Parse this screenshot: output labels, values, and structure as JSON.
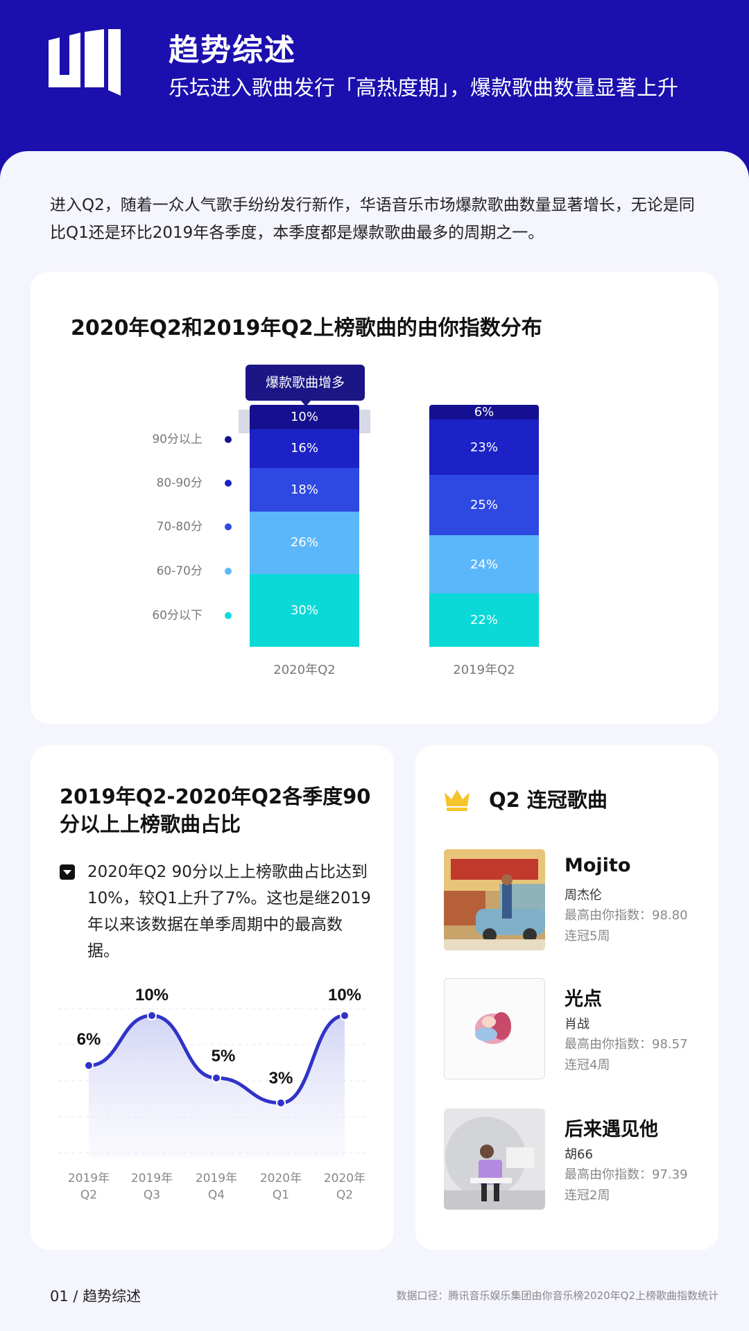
{
  "header": {
    "title": "趋势综述",
    "subtitle": "乐坛进入歌曲发行「高热度期」，爆款歌曲数量显著上升"
  },
  "intro": "进入Q2，随着一众人气歌手纷纷发行新作，华语音乐市场爆款歌曲数量显著增长，无论是同比Q1还是环比2019年各季度，本季度都是爆款歌曲最多的周期之一。",
  "colors": {
    "brand": "#1b0fae",
    "seg_90_up": "#15108f",
    "seg_80_90": "#1c22c6",
    "seg_70_80": "#2e48e2",
    "seg_60_70": "#5cb7fa",
    "seg_60_down": "#0ad9d8",
    "line": "#2f33c8",
    "gold": "#f5c42a"
  },
  "stacked_chart": {
    "callout": "爆款歌曲增多"
  },
  "line_chart": {
    "title": "2019年Q2-2020年Q2各季度90分以上上榜歌曲占比",
    "note": "2020年Q2 90分以上上榜歌曲占比达到10%，较Q1上升了7%。这也是继2019年以来该数据在单季周期中的最高数据。"
  },
  "champions": {
    "title": "Q2 连冠歌曲",
    "songs": [
      {
        "title": "Mojito",
        "artist": "周杰伦",
        "index": "最高由你指数：98.80",
        "weeks": "连冠5周",
        "cover": "mojito-cover"
      },
      {
        "title": "光点",
        "artist": "肖战",
        "index": "最高由你指数：98.57",
        "weeks": "连冠4周",
        "cover": "guangdian-cover"
      },
      {
        "title": "后来遇见他",
        "artist": "胡66",
        "index": "最高由你指数：97.39",
        "weeks": "连冠2周",
        "cover": "houlai-cover"
      }
    ]
  },
  "footer": {
    "page": "01 / 趋势综述",
    "source": "数据口径：腾讯音乐娱乐集团由你音乐榜2020年Q2上榜歌曲指数统计"
  },
  "chart_data": [
    {
      "type": "bar",
      "stacked": true,
      "title": "2020年Q2和2019年Q2上榜歌曲的由你指数分布",
      "categories": [
        "2020年Q2",
        "2019年Q2"
      ],
      "legend": [
        "90分以上",
        "80-90分",
        "70-80分",
        "60-70分",
        "60分以下"
      ],
      "segment_labels": [
        [
          "10%",
          "16%",
          "18%",
          "26%",
          "30%"
        ],
        [
          "6%",
          "23%",
          "25%",
          "24%",
          "22%"
        ]
      ],
      "segment_heights_pct": [
        [
          10,
          16,
          18,
          26,
          30
        ],
        [
          6,
          23,
          25,
          24,
          22
        ]
      ],
      "legend_placement": "left",
      "grid": false
    },
    {
      "type": "line",
      "title": "2019年Q2-2020年Q2各季度90分以上上榜歌曲占比",
      "x": [
        "2019年 Q2",
        "2019年 Q3",
        "2019年 Q4",
        "2020年 Q1",
        "2020年 Q2"
      ],
      "values": [
        6,
        10,
        5,
        3,
        10
      ],
      "value_labels": [
        "6%",
        "10%",
        "5%",
        "3%",
        "10%"
      ],
      "ylim": [
        0,
        10
      ],
      "grid": true,
      "smooth": true
    }
  ]
}
